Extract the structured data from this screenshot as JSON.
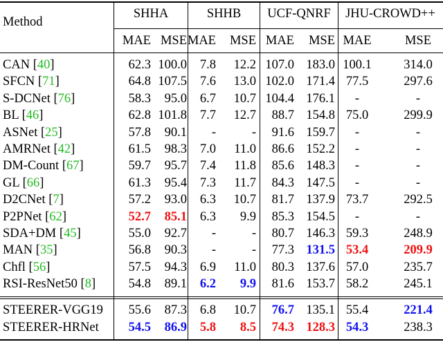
{
  "header": {
    "method": "Method",
    "groups": [
      "SHHA",
      "SHHB",
      "UCF-QNRF",
      "JHU-CROWD++"
    ],
    "metrics": [
      "MAE",
      "MSE",
      "MAE",
      "MSE",
      "MAE",
      "MSE",
      "MAE",
      "MSE"
    ]
  },
  "rows": [
    {
      "name": "CAN",
      "cite": "40",
      "vals": [
        "62.3",
        "100.0",
        "7.8",
        "12.2",
        "107.0",
        "183.0",
        "100.1",
        "314.0"
      ],
      "style": [
        "",
        "",
        "",
        "",
        "",
        "",
        "",
        ""
      ]
    },
    {
      "name": "SFCN",
      "cite": "71",
      "vals": [
        "64.8",
        "107.5",
        "7.6",
        "13.0",
        "102.0",
        "171.4",
        "77.5",
        "297.6"
      ],
      "style": [
        "",
        "",
        "",
        "",
        "",
        "",
        "",
        ""
      ]
    },
    {
      "name": "S-DCNet",
      "cite": "76",
      "vals": [
        "58.3",
        "95.0",
        "6.7",
        "10.7",
        "104.4",
        "176.1",
        "-",
        "-"
      ],
      "style": [
        "",
        "",
        "",
        "",
        "",
        "",
        "",
        ""
      ]
    },
    {
      "name": "BL",
      "cite": "46",
      "vals": [
        "62.8",
        "101.8",
        "7.7",
        "12.7",
        "88.7",
        "154.8",
        "75.0",
        "299.9"
      ],
      "style": [
        "",
        "",
        "",
        "",
        "",
        "",
        "",
        ""
      ]
    },
    {
      "name": "ASNet",
      "cite": "25",
      "vals": [
        "57.8",
        "90.1",
        "-",
        "-",
        "91.6",
        "159.7",
        "-",
        "-"
      ],
      "style": [
        "",
        "",
        "",
        "",
        "",
        "",
        "",
        ""
      ]
    },
    {
      "name": "AMRNet",
      "cite": "42",
      "vals": [
        "61.5",
        "98.3",
        "7.0",
        "11.0",
        "86.6",
        "152.2",
        "-",
        "-"
      ],
      "style": [
        "",
        "",
        "",
        "",
        "",
        "",
        "",
        ""
      ]
    },
    {
      "name": "DM-Count",
      "cite": "67",
      "vals": [
        "59.7",
        "95.7",
        "7.4",
        "11.8",
        "85.6",
        "148.3",
        "-",
        "-"
      ],
      "style": [
        "",
        "",
        "",
        "",
        "",
        "",
        "",
        ""
      ]
    },
    {
      "name": "GL",
      "cite": "66",
      "vals": [
        "61.3",
        "95.4",
        "7.3",
        "11.7",
        "84.3",
        "147.5",
        "-",
        "-"
      ],
      "style": [
        "",
        "",
        "",
        "",
        "",
        "",
        "",
        ""
      ]
    },
    {
      "name": "D2CNet",
      "cite": "7",
      "vals": [
        "57.2",
        "93.0",
        "6.3",
        "10.7",
        "81.7",
        "137.9",
        "73.7",
        "292.5"
      ],
      "style": [
        "",
        "",
        "",
        "",
        "",
        "",
        "",
        ""
      ]
    },
    {
      "name": "P2PNet",
      "cite": "62",
      "vals": [
        "52.7",
        "85.1",
        "6.3",
        "9.9",
        "85.3",
        "154.5",
        "-",
        "-"
      ],
      "style": [
        "red",
        "red",
        "",
        "",
        "",
        "",
        "",
        ""
      ]
    },
    {
      "name": "SDA+DM",
      "cite": "45",
      "vals": [
        "55.0",
        "92.7",
        "-",
        "-",
        "80.7",
        "146.3",
        "59.3",
        "248.9"
      ],
      "style": [
        "",
        "",
        "",
        "",
        "",
        "",
        "",
        ""
      ]
    },
    {
      "name": "MAN",
      "cite": "35",
      "vals": [
        "56.8",
        "90.3",
        "-",
        "-",
        "77.3",
        "131.5",
        "53.4",
        "209.9"
      ],
      "style": [
        "",
        "",
        "",
        "",
        "",
        "blue",
        "red",
        "red"
      ]
    },
    {
      "name": "Chfl",
      "cite": "56",
      "vals": [
        "57.5",
        "94.3",
        "6.9",
        "11.0",
        "80.3",
        "137.6",
        "57.0",
        "235.7"
      ],
      "style": [
        "",
        "",
        "",
        "",
        "",
        "",
        "",
        ""
      ]
    },
    {
      "name": "RSI-ResNet50",
      "cite": "8",
      "vals": [
        "54.8",
        "89.1",
        "6.2",
        "9.9",
        "81.6",
        "153.7",
        "58.2",
        "245.1"
      ],
      "style": [
        "",
        "",
        "blue",
        "blue",
        "",
        "",
        "",
        ""
      ]
    }
  ],
  "ours": [
    {
      "name": "STEERER-VGG19",
      "vals": [
        "55.6",
        "87.3",
        "6.8",
        "10.7",
        "76.7",
        "135.1",
        "55.4",
        "221.4"
      ],
      "style": [
        "",
        "",
        "",
        "",
        "blue",
        "",
        "",
        "blue"
      ]
    },
    {
      "name": "STEERER-HRNet",
      "vals": [
        "54.5",
        "86.9",
        "5.8",
        "8.5",
        "74.3",
        "128.3",
        "54.3",
        "238.3"
      ],
      "style": [
        "blue",
        "blue",
        "red",
        "red",
        "red",
        "red",
        "blue",
        ""
      ]
    }
  ]
}
